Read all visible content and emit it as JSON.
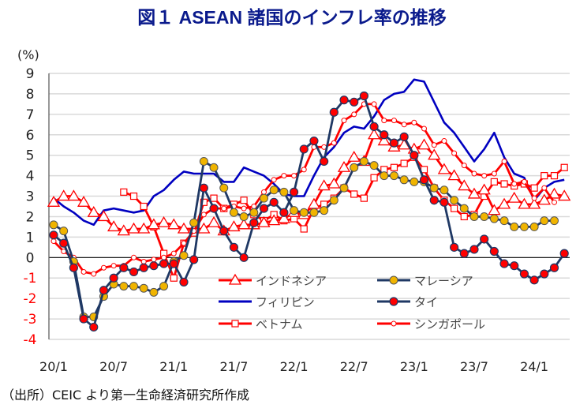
{
  "chart_data": {
    "type": "line",
    "title": "図１ ASEAN 諸国のインフレ率の推移",
    "ylabel": "(%)",
    "ylim": [
      -4,
      9
    ],
    "yticks": [
      9,
      8,
      7,
      6,
      5,
      4,
      3,
      2,
      1,
      0,
      -1,
      -2,
      -3,
      -4
    ],
    "x_start": "2020/1",
    "x_end": "2024/4",
    "x_frequency": "monthly",
    "xtick_labels": [
      "20/1",
      "20/7",
      "21/1",
      "21/7",
      "22/1",
      "22/7",
      "23/1",
      "23/7",
      "24/1"
    ],
    "grid": true,
    "legend_placement": "bottom-right inside",
    "source": "（出所）CEIC より第一生命経済研究所作成",
    "series": [
      {
        "name": "インドネシア",
        "color": "#ff0000",
        "marker": "triangle-hollow",
        "values": [
          2.7,
          3.0,
          3.0,
          2.7,
          2.2,
          2.0,
          1.5,
          1.3,
          1.4,
          1.4,
          1.6,
          1.7,
          1.6,
          1.4,
          1.4,
          1.4,
          1.7,
          1.3,
          1.5,
          1.6,
          1.6,
          1.7,
          1.8,
          1.9,
          2.2,
          2.1,
          2.6,
          3.5,
          3.6,
          4.4,
          4.9,
          4.7,
          6.0,
          5.7,
          5.4,
          5.5,
          5.3,
          5.5,
          5.0,
          4.3,
          4.0,
          3.5,
          3.1,
          3.3,
          2.3,
          2.6,
          2.9,
          2.6,
          2.6,
          2.8,
          3.1,
          3.0
        ]
      },
      {
        "name": "マレーシア",
        "color": "#1f3864",
        "marker": "circle-gold",
        "values": [
          1.6,
          1.3,
          -0.2,
          -2.9,
          -2.9,
          -1.9,
          -1.3,
          -1.4,
          -1.4,
          -1.5,
          -1.7,
          -1.4,
          -0.2,
          0.1,
          1.7,
          4.7,
          4.4,
          3.4,
          2.2,
          2.0,
          2.2,
          2.9,
          3.3,
          3.2,
          2.3,
          2.2,
          2.2,
          2.3,
          2.8,
          3.4,
          4.4,
          4.7,
          4.5,
          4.0,
          4.0,
          3.8,
          3.7,
          3.7,
          3.4,
          3.3,
          2.8,
          2.4,
          2.0,
          2.0,
          1.9,
          1.8,
          1.5,
          1.5,
          1.5,
          1.8,
          1.8,
          null
        ]
      },
      {
        "name": "フィリピン",
        "color": "#0000c0",
        "marker": "none",
        "values": [
          2.9,
          2.5,
          2.2,
          1.8,
          1.6,
          2.3,
          2.4,
          2.3,
          2.2,
          2.3,
          3.0,
          3.3,
          3.8,
          4.2,
          4.1,
          4.1,
          4.1,
          3.7,
          3.7,
          4.4,
          4.2,
          4.0,
          3.6,
          3.1,
          3.0,
          3.0,
          4.0,
          4.9,
          5.4,
          6.1,
          6.4,
          6.3,
          6.9,
          7.7,
          8.0,
          8.1,
          8.7,
          8.6,
          7.6,
          6.6,
          6.1,
          5.4,
          4.7,
          5.3,
          6.1,
          4.9,
          4.1,
          3.9,
          2.8,
          3.4,
          3.7,
          3.8
        ]
      },
      {
        "name": "タイ",
        "color": "#1f3864",
        "marker": "circle-red",
        "values": [
          1.1,
          0.7,
          -0.5,
          -3.0,
          -3.4,
          -1.6,
          -1.0,
          -0.5,
          -0.7,
          -0.5,
          -0.4,
          -0.3,
          -0.3,
          -1.2,
          -0.1,
          3.4,
          2.4,
          1.3,
          0.5,
          0.0,
          1.7,
          2.4,
          2.7,
          2.2,
          3.2,
          5.3,
          5.7,
          4.7,
          7.1,
          7.7,
          7.6,
          7.9,
          6.4,
          6.0,
          5.6,
          5.9,
          5.0,
          3.8,
          2.8,
          2.7,
          0.5,
          0.2,
          0.4,
          0.9,
          0.3,
          -0.3,
          -0.4,
          -0.8,
          -1.1,
          -0.8,
          -0.5,
          0.2
        ]
      },
      {
        "name": "ベトナム",
        "color": "#ff0000",
        "marker": "square-hollow",
        "values": [
          null,
          null,
          null,
          null,
          null,
          null,
          null,
          3.2,
          3.0,
          2.5,
          1.5,
          0.2,
          -1.0,
          0.7,
          1.2,
          2.7,
          2.9,
          2.4,
          2.6,
          2.8,
          2.1,
          1.8,
          2.1,
          1.8,
          1.9,
          1.4,
          2.4,
          2.6,
          2.9,
          3.4,
          3.1,
          2.9,
          3.9,
          4.3,
          4.4,
          4.6,
          4.9,
          4.3,
          3.4,
          2.8,
          2.4,
          2.0,
          2.1,
          3.0,
          3.7,
          3.6,
          3.5,
          3.6,
          3.4,
          4.0,
          4.0,
          4.4
        ]
      },
      {
        "name": "シンガポール",
        "color": "#ff0000",
        "marker": "circle-small-hollow",
        "values": [
          0.8,
          0.3,
          0.0,
          -0.7,
          -0.8,
          -0.5,
          -0.4,
          -0.4,
          0.0,
          -0.2,
          -0.1,
          0.0,
          0.2,
          0.7,
          1.3,
          2.1,
          2.4,
          2.4,
          2.5,
          2.4,
          2.5,
          3.2,
          3.8,
          4.0,
          4.0,
          4.3,
          5.4,
          5.4,
          5.6,
          6.7,
          7.0,
          7.5,
          7.5,
          6.7,
          6.7,
          6.5,
          6.6,
          6.3,
          5.5,
          5.7,
          5.1,
          4.5,
          4.1,
          4.0,
          4.1,
          4.7,
          3.6,
          3.7,
          2.9,
          3.4,
          2.7,
          null
        ]
      }
    ]
  }
}
